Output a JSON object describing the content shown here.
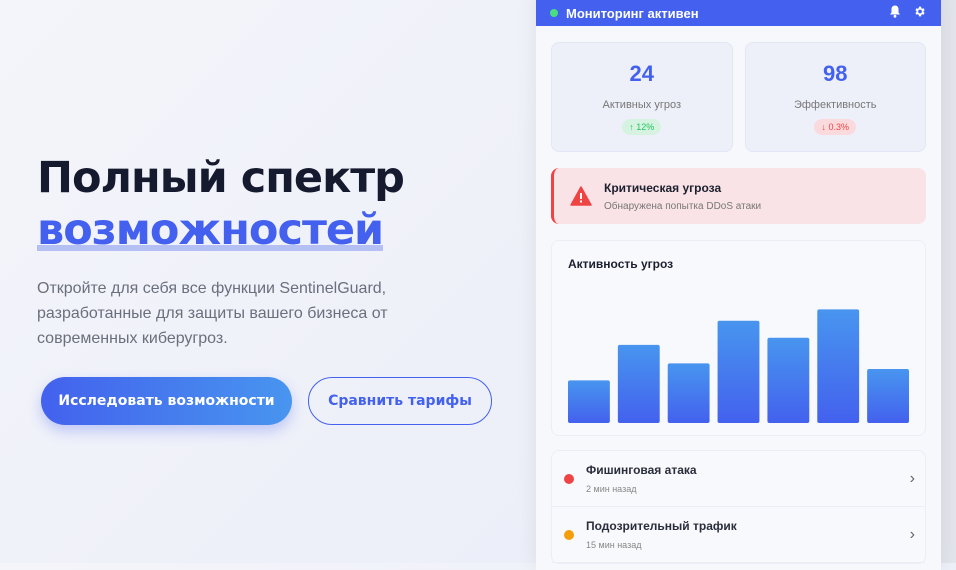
{
  "hero": {
    "title_line1": "Полный спектр",
    "title_line2": "возможностей",
    "description": "Откройте для себя все функции SentinelGuard, разработанные для защиты вашего бизнеса от современных киберугроз.",
    "primary_button": "Исследовать возможности",
    "secondary_button": "Сравнить тарифы"
  },
  "panel": {
    "header": {
      "title": "Мониторинг активен",
      "status_color": "#4ade80",
      "icons": [
        "bell-icon",
        "gear-icon"
      ]
    },
    "stats": [
      {
        "value": "24",
        "label": "Активных угроз",
        "change": "12%",
        "direction": "up"
      },
      {
        "value": "98",
        "label": "Эффективность",
        "change": "0.3%",
        "direction": "down"
      }
    ],
    "alert": {
      "title": "Критическая угроза",
      "subtitle": "Обнаружена попытка DDoS атаки",
      "icon": "warning-icon",
      "color": "#ef4444"
    },
    "chart": {
      "title": "Активность угроз"
    },
    "events": [
      {
        "title": "Фишинговая атака",
        "time": "2 мин назад",
        "color": "#ef4444"
      },
      {
        "title": "Подозрительный трафик",
        "time": "15 мин назад",
        "color": "#f59e0b"
      }
    ]
  },
  "chart_data": {
    "type": "bar",
    "title": "Активность угроз",
    "values": [
      30,
      55,
      42,
      72,
      60,
      80,
      38
    ],
    "ylim": [
      0,
      100
    ],
    "grid": false,
    "colors": [
      "#4895ef",
      "#4361ee"
    ]
  },
  "colors": {
    "accent": "#4361ee"
  }
}
